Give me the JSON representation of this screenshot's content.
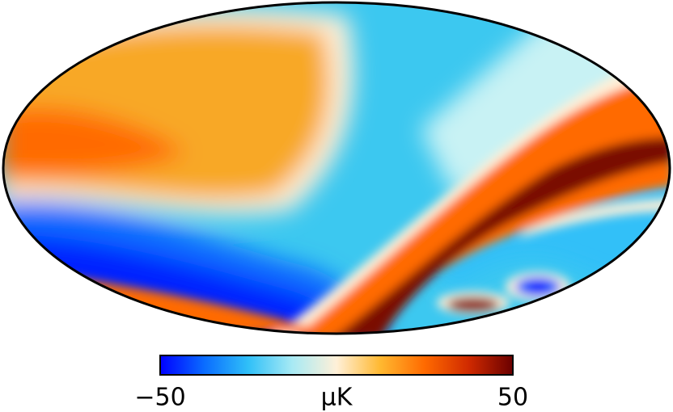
{
  "chart_data": {
    "type": "mollweide",
    "colorbar": {
      "vlim": [
        -50,
        50
      ],
      "ticks": [
        {
          "value": -50,
          "label": "−50"
        },
        50
      ],
      "unit": "μK",
      "colors": [
        "#0000ff",
        "#0a6cff",
        "#30c0f8",
        "#a8eaf4",
        "#fff0d8",
        "#ffb830",
        "#ff6a00",
        "#d02a00",
        "#6a0000"
      ]
    }
  }
}
